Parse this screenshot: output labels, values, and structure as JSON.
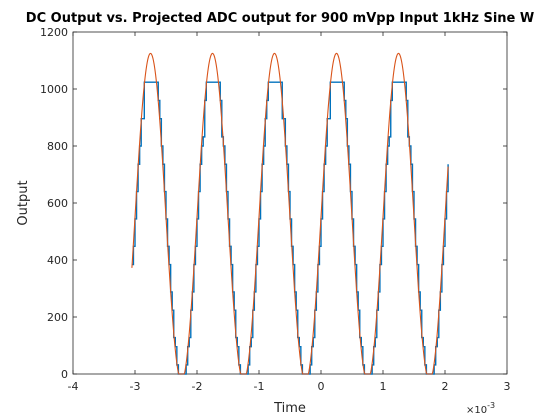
{
  "chart_data": {
    "type": "line",
    "title": "DC Output vs. Projected ADC output for 900 mVpp Input 1kHz Sine W",
    "xlabel": "Time",
    "ylabel": "Output",
    "x_exponent_prefix": "×10",
    "x_exponent_power": "-3",
    "xlim": [
      -4,
      3
    ],
    "ylim": [
      0,
      1200
    ],
    "xticks": [
      -4,
      -3,
      -2,
      -1,
      0,
      1,
      2,
      3
    ],
    "xtick_labels": [
      "-4",
      "-3",
      "-2",
      "-1",
      "0",
      "1",
      "2",
      "3"
    ],
    "yticks": [
      0,
      200,
      400,
      600,
      800,
      1000,
      1200
    ],
    "ytick_labels": [
      "0",
      "200",
      "400",
      "600",
      "800",
      "1000",
      "1200"
    ],
    "grid": false,
    "series": [
      {
        "kind": "projected-sine",
        "color": "#D95319",
        "x_start": -3.05,
        "x_end": 2.05,
        "offset": 550,
        "amplitude": 575,
        "period": 1.0,
        "peak_x": -2.75
      },
      {
        "kind": "quantized-adc",
        "color": "#0072BD",
        "x_start": -3.05,
        "x_end": 2.05,
        "step": 0.025,
        "quant_levels": [
          0,
          32,
          64,
          96,
          128,
          160,
          192,
          224,
          256,
          288,
          320,
          352,
          384,
          416,
          448,
          480,
          512,
          544,
          576,
          608,
          640,
          672,
          704,
          736,
          768,
          800,
          832,
          864,
          896,
          928,
          960,
          992,
          1024
        ]
      }
    ]
  }
}
